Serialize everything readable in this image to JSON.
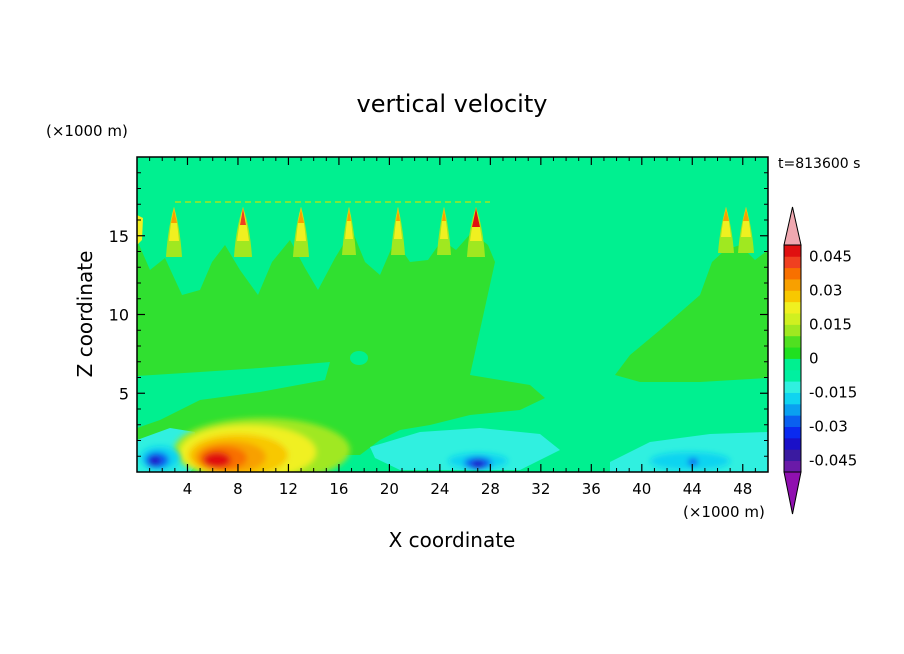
{
  "chart_data": {
    "type": "heatmap",
    "title": "vertical velocity",
    "xlabel": "X coordinate",
    "ylabel": "Z coordinate",
    "x_unit": "(×1000 m)",
    "y_unit": "(×1000 m)",
    "time_label": "t=813600 s",
    "xlim": [
      0,
      50
    ],
    "ylim": [
      0,
      20
    ],
    "xticks": [
      4,
      8,
      12,
      16,
      20,
      24,
      28,
      32,
      36,
      40,
      44,
      48
    ],
    "yticks": [
      5,
      10,
      15
    ],
    "xtick_labels": [
      "4",
      "8",
      "12",
      "16",
      "20",
      "24",
      "28",
      "32",
      "36",
      "40",
      "44",
      "48"
    ],
    "ytick_labels": [
      "5",
      "10",
      "15"
    ],
    "colorbar": {
      "levels": [
        -0.05,
        -0.045,
        -0.04,
        -0.035,
        -0.03,
        -0.025,
        -0.02,
        -0.015,
        -0.01,
        -0.005,
        0,
        0.005,
        0.01,
        0.015,
        0.02,
        0.025,
        0.03,
        0.035,
        0.04,
        0.045,
        0.05
      ],
      "tick_labels": [
        "0.045",
        "0.03",
        "0.015",
        "0",
        "-0.015",
        "-0.03",
        "-0.045"
      ],
      "tick_values": [
        0.045,
        0.03,
        0.015,
        0,
        -0.015,
        -0.03,
        -0.045
      ],
      "colors": [
        "#6a1aa8",
        "#3a1aa0",
        "#1a10c8",
        "#0a2af0",
        "#0a60f0",
        "#0aa0f0",
        "#10d4f0",
        "#30f0e0",
        "#00f0a0",
        "#00f090",
        "#20e020",
        "#50e020",
        "#a0e820",
        "#d0f020",
        "#f0f020",
        "#f8c800",
        "#f8a000",
        "#f87000",
        "#f04020",
        "#e01010"
      ],
      "under_color": "#9010b0",
      "over_color": "#f0a8b0"
    }
  }
}
